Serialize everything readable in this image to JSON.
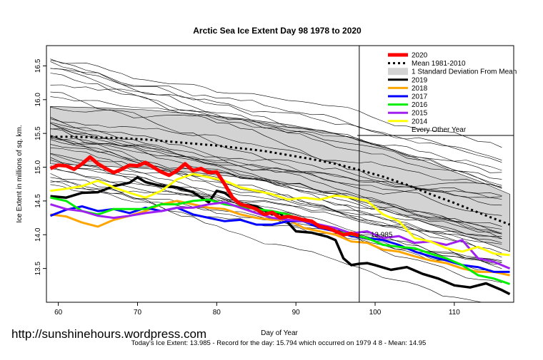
{
  "chart_data": {
    "type": "line",
    "title": "Arctic Sea Ice Extent Day 98 1978 to 2020",
    "xlabel": "Day of Year",
    "ylabel": "Ice Extent in millions of sq. km.",
    "xlim": [
      58.5,
      117.5
    ],
    "ylim": [
      13.0,
      16.8
    ],
    "xticks": [
      60,
      70,
      80,
      90,
      100,
      110
    ],
    "yticks": [
      13.5,
      14.0,
      14.5,
      15.0,
      15.5,
      16.0,
      16.5
    ],
    "current_day": 98,
    "current_value_label": "13.985",
    "legend_position": "top-right",
    "legend": [
      {
        "label": "2020",
        "color": "#ff0000",
        "style": "solid-thick"
      },
      {
        "label": "Mean 1981-2010",
        "color": "#000000",
        "style": "dotted"
      },
      {
        "label": "1 Standard Deviation From Mean",
        "color": "#d3d3d3",
        "style": "box"
      },
      {
        "label": "2019",
        "color": "#000000",
        "style": "solid"
      },
      {
        "label": "2018",
        "color": "#ffa500",
        "style": "solid"
      },
      {
        "label": "2017",
        "color": "#0000ff",
        "style": "solid"
      },
      {
        "label": "2016",
        "color": "#00ee00",
        "style": "solid"
      },
      {
        "label": "2015",
        "color": "#a020f0",
        "style": "solid"
      },
      {
        "label": "2014",
        "color": "#ffff00",
        "style": "solid"
      },
      {
        "label": "Every Other Year",
        "color": "#000000",
        "style": "thin"
      }
    ],
    "mean": {
      "x": [
        59,
        62,
        65,
        68,
        71,
        74,
        77,
        80,
        83,
        86,
        89,
        92,
        95,
        98,
        101,
        104,
        107,
        110,
        113,
        117
      ],
      "y": [
        15.45,
        15.45,
        15.44,
        15.43,
        15.41,
        15.38,
        15.35,
        15.32,
        15.28,
        15.24,
        15.18,
        15.12,
        15.05,
        14.96,
        14.86,
        14.74,
        14.6,
        14.47,
        14.33,
        14.15
      ]
    },
    "std_band": {
      "x": [
        59,
        65,
        71,
        77,
        83,
        89,
        95,
        101,
        107,
        113,
        117
      ],
      "upper": [
        15.9,
        15.88,
        15.85,
        15.79,
        15.72,
        15.63,
        15.5,
        15.3,
        15.06,
        14.8,
        14.6
      ],
      "lower": [
        15.05,
        15.02,
        14.98,
        14.92,
        14.85,
        14.74,
        14.6,
        14.4,
        14.15,
        13.92,
        13.75
      ]
    },
    "series": [
      {
        "name": "2020",
        "color": "#ff0000",
        "width": 5,
        "x": [
          59,
          60,
          61,
          62,
          63,
          64,
          65,
          66,
          67,
          68,
          69,
          70,
          71,
          72,
          73,
          74,
          75,
          76,
          77,
          78,
          79,
          80,
          81,
          82,
          83,
          84,
          85,
          86,
          87,
          88,
          89,
          90,
          91,
          92,
          93,
          94,
          95,
          96,
          97,
          98
        ],
        "y": [
          14.98,
          15.03,
          15.02,
          14.97,
          15.05,
          15.15,
          15.05,
          14.98,
          14.92,
          14.97,
          15.03,
          15.02,
          15.07,
          15.0,
          14.93,
          14.88,
          14.95,
          15.05,
          14.95,
          14.98,
          14.92,
          14.93,
          14.75,
          14.55,
          14.45,
          14.42,
          14.38,
          14.3,
          14.33,
          14.25,
          14.27,
          14.25,
          14.22,
          14.2,
          14.12,
          14.1,
          14.05,
          14.0,
          14.02,
          13.985
        ]
      },
      {
        "name": "2019",
        "color": "#000000",
        "width": 3.5,
        "x": [
          59,
          61,
          63,
          65,
          67,
          69,
          70,
          71,
          73,
          75,
          77,
          79,
          80,
          81,
          83,
          85,
          87,
          88,
          89,
          90,
          92,
          94,
          95,
          96,
          97,
          98,
          99,
          100,
          102,
          104,
          106,
          108,
          110,
          112,
          114,
          116,
          117
        ],
        "y": [
          14.57,
          14.55,
          14.62,
          14.63,
          14.72,
          14.77,
          14.85,
          14.78,
          14.72,
          14.7,
          14.63,
          14.48,
          14.65,
          14.62,
          14.45,
          14.42,
          14.3,
          14.32,
          14.18,
          14.05,
          14.03,
          13.97,
          13.92,
          13.65,
          13.55,
          13.57,
          13.58,
          13.55,
          13.48,
          13.52,
          13.42,
          13.35,
          13.25,
          13.22,
          13.28,
          13.18,
          13.12
        ]
      },
      {
        "name": "2018",
        "color": "#ffa500",
        "width": 3,
        "x": [
          59,
          61,
          63,
          65,
          67,
          69,
          71,
          73,
          75,
          77,
          79,
          81,
          83,
          85,
          87,
          89,
          91,
          93,
          95,
          97,
          99,
          101,
          103,
          105,
          107,
          109,
          111,
          113,
          115,
          117
        ],
        "y": [
          14.3,
          14.27,
          14.18,
          14.12,
          14.22,
          14.28,
          14.35,
          14.45,
          14.5,
          14.45,
          14.4,
          14.38,
          14.3,
          14.25,
          14.22,
          14.22,
          14.1,
          14.05,
          14.0,
          13.9,
          13.88,
          13.78,
          13.75,
          13.68,
          13.62,
          13.58,
          13.5,
          13.45,
          13.45,
          13.4
        ]
      },
      {
        "name": "2017",
        "color": "#0000ff",
        "width": 3,
        "x": [
          59,
          61,
          63,
          65,
          67,
          69,
          71,
          73,
          75,
          77,
          79,
          81,
          83,
          85,
          87,
          89,
          91,
          93,
          95,
          97,
          99,
          101,
          103,
          105,
          107,
          109,
          111,
          113,
          115,
          117
        ],
        "y": [
          14.28,
          14.37,
          14.42,
          14.35,
          14.38,
          14.32,
          14.4,
          14.35,
          14.4,
          14.3,
          14.25,
          14.2,
          14.22,
          14.15,
          14.15,
          14.2,
          14.2,
          14.1,
          14.05,
          13.98,
          13.95,
          13.92,
          13.85,
          13.75,
          13.68,
          13.62,
          13.55,
          13.52,
          13.45,
          13.45
        ]
      },
      {
        "name": "2016",
        "color": "#00ee00",
        "width": 3,
        "x": [
          59,
          61,
          63,
          65,
          67,
          69,
          71,
          73,
          75,
          77,
          79,
          81,
          83,
          85,
          87,
          89,
          91,
          93,
          95,
          97,
          99,
          101,
          103,
          105,
          107,
          109,
          111,
          113,
          115,
          117
        ],
        "y": [
          14.55,
          14.5,
          14.35,
          14.3,
          14.38,
          14.38,
          14.38,
          14.45,
          14.45,
          14.5,
          14.52,
          14.45,
          14.42,
          14.38,
          14.35,
          14.3,
          14.2,
          14.15,
          14.05,
          14.0,
          13.95,
          13.85,
          13.82,
          13.8,
          13.72,
          13.65,
          13.55,
          13.4,
          13.35,
          13.27
        ]
      },
      {
        "name": "2015",
        "color": "#a020f0",
        "width": 3,
        "x": [
          59,
          61,
          63,
          65,
          67,
          69,
          71,
          73,
          75,
          77,
          79,
          81,
          83,
          85,
          87,
          89,
          91,
          93,
          95,
          97,
          99,
          101,
          103,
          105,
          107,
          109,
          111,
          113,
          115,
          117
        ],
        "y": [
          14.45,
          14.38,
          14.35,
          14.28,
          14.25,
          14.28,
          14.32,
          14.35,
          14.4,
          14.4,
          14.45,
          14.48,
          14.4,
          14.32,
          14.25,
          14.22,
          14.2,
          14.15,
          14.1,
          14.02,
          14.05,
          13.95,
          13.98,
          13.88,
          13.9,
          13.85,
          13.92,
          13.65,
          13.6,
          13.5
        ]
      },
      {
        "name": "2014",
        "color": "#ffff00",
        "width": 3,
        "x": [
          59,
          61,
          63,
          65,
          67,
          69,
          71,
          73,
          75,
          77,
          79,
          81,
          83,
          85,
          87,
          89,
          91,
          93,
          95,
          97,
          99,
          101,
          103,
          105,
          107,
          109,
          111,
          113,
          115,
          117
        ],
        "y": [
          14.65,
          14.68,
          14.72,
          14.8,
          14.7,
          14.62,
          14.55,
          14.65,
          14.82,
          14.9,
          14.85,
          14.8,
          14.7,
          14.65,
          14.6,
          14.52,
          14.55,
          14.52,
          14.58,
          14.55,
          14.5,
          14.3,
          14.2,
          13.95,
          13.9,
          13.8,
          13.75,
          13.82,
          13.72,
          13.7
        ]
      }
    ]
  },
  "footer": {
    "url": "http://sunshinehours.wordpress.com",
    "stats": "Today's Ice Extent: 13.985  - Record for the day: 15.794 which occurred on 1979 4 8  - Mean: 14.95"
  }
}
